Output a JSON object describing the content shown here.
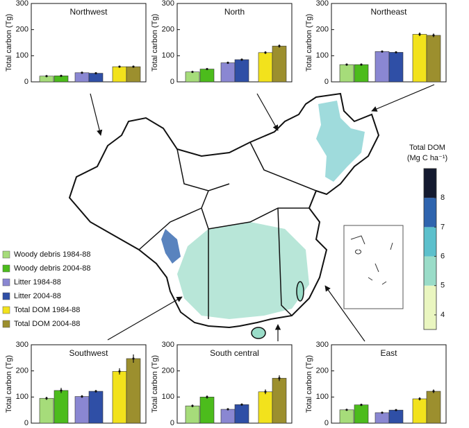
{
  "chart_data": [
    {
      "type": "bar",
      "title": "Northwest",
      "ylabel": "Total carbon (Tg)",
      "values": [
        22,
        23,
        35,
        33,
        58,
        58
      ],
      "errors": [
        2,
        2,
        2,
        2,
        3,
        3
      ],
      "ylim": [
        0,
        300
      ],
      "yticks": [
        0,
        100,
        200,
        300
      ]
    },
    {
      "type": "bar",
      "title": "North",
      "ylabel": "Total carbon (Tg)",
      "values": [
        38,
        49,
        73,
        85,
        112,
        137
      ],
      "errors": [
        2,
        3,
        3,
        3,
        5,
        6
      ],
      "ylim": [
        0,
        300
      ],
      "yticks": [
        0,
        100,
        200,
        300
      ]
    },
    {
      "type": "bar",
      "title": "Northeast",
      "ylabel": "Total carbon (Tg)",
      "values": [
        66,
        66,
        116,
        113,
        182,
        178
      ],
      "errors": [
        4,
        3,
        3,
        3,
        7,
        7
      ],
      "ylim": [
        0,
        300
      ],
      "yticks": [
        0,
        100,
        200,
        300
      ]
    },
    {
      "type": "bar",
      "title": "Southwest",
      "ylabel": "Total carbon (Tg)",
      "values": [
        95,
        125,
        102,
        122,
        198,
        247
      ],
      "errors": [
        6,
        10,
        5,
        5,
        12,
        16
      ],
      "ylim": [
        0,
        300
      ],
      "yticks": [
        0,
        100,
        200,
        300
      ]
    },
    {
      "type": "bar",
      "title": "South central",
      "ylabel": "Total carbon (Tg)",
      "values": [
        66,
        100,
        53,
        71,
        120,
        172
      ],
      "errors": [
        5,
        6,
        3,
        3,
        9,
        11
      ],
      "ylim": [
        0,
        300
      ],
      "yticks": [
        0,
        100,
        200,
        300
      ]
    },
    {
      "type": "bar",
      "title": "East",
      "ylabel": "Total carbon (Tg)",
      "values": [
        51,
        70,
        40,
        50,
        93,
        122
      ],
      "errors": [
        3,
        4,
        2,
        2,
        6,
        7
      ],
      "ylim": [
        0,
        300
      ],
      "yticks": [
        0,
        100,
        200,
        300
      ]
    }
  ],
  "legend": [
    {
      "name": "Woody debris 1984-88",
      "color": "#a6dc7a"
    },
    {
      "name": "Woody debris 2004-88",
      "color": "#4cbc1c"
    },
    {
      "name": "Litter 1984-88",
      "color": "#8a87d2"
    },
    {
      "name": "Litter 2004-88",
      "color": "#2f4fa6"
    },
    {
      "name": "Total DOM 1984-88",
      "color": "#f2e21c"
    },
    {
      "name": "Total DOM 2004-88",
      "color": "#9c8f2e"
    }
  ],
  "colorbar": {
    "title": "Total DOM",
    "unit": "(Mg C ha⁻¹)",
    "clim": [
      3.5,
      9
    ],
    "ticks": [
      4,
      5,
      6,
      7,
      8
    ],
    "colors": [
      "#eaf6c0",
      "#9adcc8",
      "#5cc0cc",
      "#2f64ae",
      "#141a30"
    ]
  }
}
